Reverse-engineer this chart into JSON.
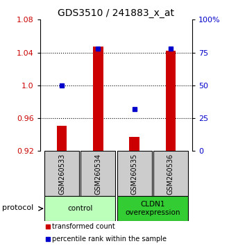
{
  "title": "GDS3510 / 241883_x_at",
  "samples": [
    "GSM260533",
    "GSM260534",
    "GSM260535",
    "GSM260536"
  ],
  "transformed_counts": [
    0.951,
    1.047,
    0.937,
    1.042
  ],
  "percentile_ranks": [
    50,
    78,
    32,
    78
  ],
  "ylim_left": [
    0.92,
    1.08
  ],
  "ylim_right": [
    0,
    100
  ],
  "yticks_left": [
    0.92,
    0.96,
    1.0,
    1.04,
    1.08
  ],
  "yticks_right": [
    0,
    25,
    50,
    75,
    100
  ],
  "ytick_labels_right": [
    "0",
    "25",
    "50",
    "75",
    "100%"
  ],
  "bar_color": "#cc0000",
  "dot_color": "#0000cc",
  "bar_bottom": 0.92,
  "groups": [
    {
      "label": "control",
      "samples": [
        0,
        1
      ],
      "color": "#bbffbb"
    },
    {
      "label": "CLDN1\noverexpression",
      "samples": [
        2,
        3
      ],
      "color": "#33cc33"
    }
  ],
  "protocol_label": "protocol",
  "legend_bar_label": "transformed count",
  "legend_dot_label": "percentile rank within the sample",
  "bg_color": "#ffffff",
  "sample_box_color": "#cccccc",
  "x_positions": [
    1,
    2,
    3,
    4
  ],
  "bar_width": 0.28
}
